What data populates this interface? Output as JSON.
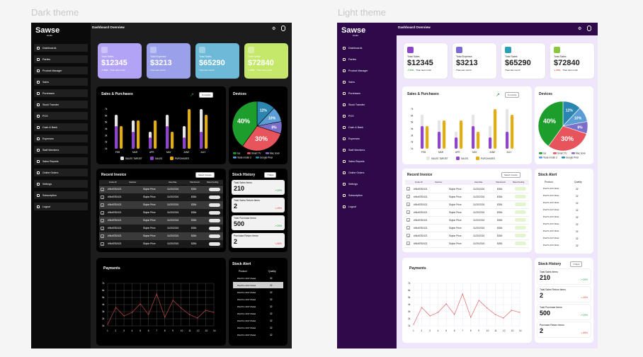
{
  "themes": {
    "dark": "Dark theme",
    "light": "Light theme"
  },
  "app": {
    "name": "Sawse",
    "tagline": "studio"
  },
  "header": {
    "title": "Dashboard Overview"
  },
  "sidebar": [
    "Dashboards",
    "Parties",
    "Product Manager",
    "Sales",
    "Purchases",
    "Stock Transfer",
    "POS",
    "Cash & Bank",
    "Expenses",
    "Staff Members",
    "Sales Reports",
    "Online Orders",
    "Settings",
    "Subscription",
    "Logout"
  ],
  "stats": [
    {
      "label": "Total Sales",
      "value": "$12345",
      "change": "20%",
      "note": "Than last month",
      "dir": "up"
    },
    {
      "label": "Total Expense",
      "value": "$3213",
      "change": "",
      "note": "Than last month",
      "dir": "none"
    },
    {
      "label": "Total Sales",
      "value": "$65290",
      "change": "",
      "note": "Than last month",
      "dir": "none"
    },
    {
      "label": "Total Sales",
      "value": "$72840",
      "change": "20%",
      "note": "Than last month",
      "dir": "down"
    }
  ],
  "stats_light": [
    {
      "label": "Total Sales",
      "value": "$12345",
      "change": "20%",
      "note": "Than last month",
      "dir": "up"
    },
    {
      "label": "Total Expense",
      "value": "$3213",
      "change": "",
      "note": "Than last month",
      "dir": "none"
    },
    {
      "label": "Total Sales",
      "value": "$65290",
      "change": "",
      "note": "Than last month",
      "dir": "none"
    },
    {
      "label": "Total Sales",
      "value": "$72840",
      "change": "20%",
      "note": "Than last month",
      "dir": "down"
    }
  ],
  "sales_chart": {
    "title": "Sales & Purchases",
    "period": "6 months",
    "months": [
      "FEB",
      "MAR",
      "APR",
      "MAY",
      "JUNE",
      "JULY"
    ],
    "y_ticks": [
      "7k",
      "6k",
      "5k",
      "4k",
      "3k",
      "2k",
      "1k"
    ],
    "legend": [
      "SALES TARGET",
      "SALES",
      "PURCHASES"
    ],
    "colors": {
      "target": "#e5e5e5",
      "sales": "#8e44c8",
      "purchases": "#e3ad12"
    },
    "chart_data": {
      "type": "bar",
      "categories": [
        "FEB",
        "MAR",
        "APR",
        "MAY",
        "JUNE",
        "JULY"
      ],
      "series": [
        {
          "name": "SALES TARGET",
          "values": [
            6,
            5,
            3,
            6,
            4,
            7
          ]
        },
        {
          "name": "SALES",
          "values": [
            4,
            3,
            2,
            4,
            2,
            3
          ]
        },
        {
          "name": "PURCHASES",
          "values": [
            4,
            5,
            5,
            3,
            7,
            6
          ]
        }
      ],
      "ylim": [
        0,
        7
      ]
    }
  },
  "devices": {
    "title": "Devices",
    "slices": [
      {
        "name": "Ios",
        "value": 40,
        "label": "40%",
        "color": "#1d9e2c"
      },
      {
        "name": "Smart TV",
        "value": 30,
        "label": "30%",
        "color": "#e8545b"
      },
      {
        "name": "Mac book",
        "value": 8,
        "label": "8%",
        "color": "#7c6fc9"
      },
      {
        "name": "Tesla model 3",
        "value": 10,
        "label": "10%",
        "color": "#5b9ed6"
      },
      {
        "name": "Google Pixel",
        "value": 12,
        "label": "12%",
        "color": "#2a86b0"
      }
    ]
  },
  "invoice": {
    "title": "Recent Invoice",
    "filter": "Select Invoice",
    "columns": [
      "Invoice ID",
      "Customer",
      "Issue Date",
      "Total Amount",
      "Status Pending"
    ],
    "rows": [
      {
        "id": "#INv8782421",
        "customer": "Skylar Price",
        "date": "11/20/2024",
        "amount": "$354"
      },
      {
        "id": "#INv8782421",
        "customer": "Skylar Price",
        "date": "11/20/2024",
        "amount": "$354"
      },
      {
        "id": "#INv8782421",
        "customer": "Skylar Price",
        "date": "11/20/2024",
        "amount": "$354"
      },
      {
        "id": "#INv8782421",
        "customer": "Skylar Price",
        "date": "11/20/2024",
        "amount": "$354"
      },
      {
        "id": "#INv8782421",
        "customer": "Skylar Price",
        "date": "11/20/2024",
        "amount": "$354"
      },
      {
        "id": "#INv8782421",
        "customer": "Skylar Price",
        "date": "11/20/2024",
        "amount": "$354"
      },
      {
        "id": "#INv8782421",
        "customer": "Skylar Price",
        "date": "11/20/2024",
        "amount": "$354"
      },
      {
        "id": "#INv8782421",
        "customer": "Skylar Price",
        "date": "11/20/2024",
        "amount": "$354"
      }
    ]
  },
  "stock_history": {
    "title": "Stock History",
    "period": "7 Days",
    "items": [
      {
        "label": "Total Sales Items",
        "value": "210",
        "change": "20%",
        "dir": "up"
      },
      {
        "label": "Total Sales Return Items",
        "value": "2",
        "change": "45%",
        "dir": "down"
      },
      {
        "label": "Total Purchase Items",
        "value": "500",
        "change": "20%",
        "dir": "up"
      },
      {
        "label": "Purchase Return Items",
        "value": "2",
        "change": "86%",
        "dir": "down"
      }
    ]
  },
  "stock_alert": {
    "title": "Stock Alert",
    "columns": [
      "Product",
      "Quality"
    ],
    "rows": [
      {
        "product": "iPad Pro 2017 Model",
        "qty": "32"
      },
      {
        "product": "iPad Pro 2017 Model",
        "qty": "32"
      },
      {
        "product": "iPad Pro 2017 Model",
        "qty": "32"
      },
      {
        "product": "iPad Pro 2017 Model",
        "qty": "32"
      },
      {
        "product": "iPad Pro 2017 Model",
        "qty": "32"
      },
      {
        "product": "iPad Pro 2017 Model",
        "qty": "32"
      },
      {
        "product": "iPad Pro 2017 Model",
        "qty": "32"
      },
      {
        "product": "iPad Pro 2017 Model",
        "qty": "32"
      },
      {
        "product": "iPad Pro 2017 Model",
        "qty": "32"
      }
    ]
  },
  "payments": {
    "title": "Payments",
    "x": [
      "1",
      "2",
      "3",
      "4",
      "5",
      "6",
      "7",
      "8",
      "9",
      "10",
      "11",
      "12",
      "13",
      "14"
    ],
    "y_ticks": [
      "7k",
      "6k",
      "5k",
      "4k",
      "3k",
      "2k",
      "1k"
    ],
    "color": "#d9534f",
    "chart_data": {
      "type": "line",
      "x": [
        1,
        2,
        3,
        4,
        5,
        6,
        7,
        8,
        9,
        10,
        11,
        12,
        13,
        14
      ],
      "values": [
        1.2,
        3.6,
        2.4,
        2.9,
        4.1,
        2.6,
        5.5,
        2.2,
        4.6,
        3.5,
        2.6,
        2.1,
        3.2,
        2.9
      ],
      "ylim": [
        1,
        7
      ]
    }
  }
}
